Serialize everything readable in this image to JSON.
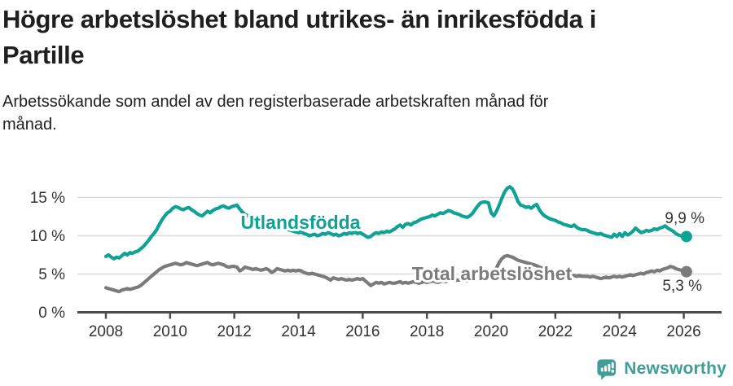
{
  "header": {
    "title_lines": [
      "Högre arbetslöshet bland utrikes- än inrikesfödda i",
      "Partille"
    ],
    "subtitle_lines": [
      "Arbetssökande som andel av den registerbaserade arbetskraften månad för",
      "månad."
    ]
  },
  "footer": {
    "brand": "Newsworthy",
    "brand_color": "#3f9e97",
    "logo_icon": "bar-chart-speech-bubble"
  },
  "chart_data": {
    "type": "line",
    "title": "",
    "xlabel": "",
    "ylabel": "",
    "x_start": "2008-01",
    "x_end": "2026-02",
    "x_step": "1 month",
    "grid": true,
    "ylim": [
      0,
      17
    ],
    "y_ticks": [
      {
        "label": "15 %",
        "value": 15
      },
      {
        "label": "10 %",
        "value": 10
      },
      {
        "label": "5 %",
        "value": 5
      },
      {
        "label": "0 %",
        "value": 0
      }
    ],
    "x_ticks": [
      {
        "label": "2008",
        "value": 2008
      },
      {
        "label": "2010",
        "value": 2010
      },
      {
        "label": "2012",
        "value": 2012
      },
      {
        "label": "2014",
        "value": 2014
      },
      {
        "label": "2016",
        "value": 2016
      },
      {
        "label": "2018",
        "value": 2018
      },
      {
        "label": "2020",
        "value": 2020
      },
      {
        "label": "2022",
        "value": 2022
      },
      {
        "label": "2024",
        "value": 2024
      },
      {
        "label": "2026",
        "value": 2026
      }
    ],
    "legend": "inline-labels",
    "colors": {
      "grid": "#dbdbdb",
      "axis": "#4d4d4d",
      "tick_text": "#333333",
      "end_label_text": "#333333"
    },
    "series": [
      {
        "name": "Utlandsfödda",
        "color": "#0fa295",
        "end_label": "9,9 %",
        "end_value": 9.9,
        "values": [
          7.3,
          7.5,
          7.2,
          7.0,
          7.2,
          7.1,
          7.4,
          7.7,
          7.5,
          7.8,
          7.7,
          7.9,
          8.0,
          8.3,
          8.6,
          9.0,
          9.4,
          9.9,
          10.3,
          10.8,
          11.5,
          12.1,
          12.6,
          13.0,
          13.2,
          13.6,
          13.8,
          13.7,
          13.5,
          13.4,
          13.6,
          13.7,
          13.4,
          13.2,
          12.9,
          12.7,
          12.6,
          12.9,
          13.2,
          13.0,
          13.3,
          13.5,
          13.6,
          13.8,
          13.9,
          13.7,
          13.6,
          13.8,
          13.9,
          14.0,
          13.5,
          13.1,
          12.8,
          12.6,
          12.7,
          12.5,
          12.4,
          12.3,
          12.2,
          12.1,
          11.9,
          11.7,
          11.5,
          11.3,
          11.2,
          11.0,
          11.1,
          10.9,
          10.8,
          10.7,
          10.6,
          10.5,
          10.4,
          10.5,
          10.3,
          10.2,
          10.0,
          10.1,
          10.2,
          10.0,
          10.1,
          10.3,
          10.2,
          10.4,
          10.3,
          10.1,
          10.2,
          10.0,
          10.1,
          10.3,
          10.2,
          10.4,
          10.3,
          10.5,
          10.3,
          10.4,
          10.2,
          10.0,
          9.8,
          9.9,
          10.2,
          10.4,
          10.3,
          10.5,
          10.4,
          10.6,
          10.5,
          10.7,
          10.9,
          11.2,
          11.4,
          11.1,
          11.5,
          11.6,
          11.4,
          11.7,
          11.8,
          12.0,
          12.2,
          12.3,
          12.4,
          12.5,
          12.7,
          12.6,
          12.8,
          13.0,
          12.9,
          13.1,
          13.3,
          13.2,
          13.0,
          12.9,
          12.8,
          12.6,
          12.5,
          12.4,
          12.6,
          12.9,
          13.4,
          13.9,
          14.3,
          14.4,
          14.4,
          14.3,
          13.0,
          12.6,
          13.2,
          14.0,
          14.9,
          15.7,
          16.2,
          16.4,
          16.1,
          15.4,
          14.5,
          14.0,
          13.9,
          13.7,
          13.8,
          13.6,
          13.9,
          14.1,
          13.4,
          12.9,
          12.6,
          12.4,
          12.2,
          12.1,
          12.0,
          11.8,
          11.7,
          11.5,
          11.4,
          11.3,
          11.2,
          11.4,
          11.1,
          10.9,
          10.8,
          10.8,
          10.7,
          10.5,
          10.4,
          10.3,
          10.2,
          10.3,
          10.1,
          10.0,
          9.9,
          9.8,
          10.2,
          9.9,
          10.3,
          9.9,
          10.4,
          10.1,
          10.3,
          10.6,
          11.0,
          10.7,
          10.4,
          10.5,
          10.7,
          10.6,
          10.7,
          10.9,
          10.8,
          11.0,
          11.1,
          11.3,
          11.0,
          10.8,
          10.6,
          10.3,
          10.1,
          10.0,
          9.9,
          9.9
        ]
      },
      {
        "name": "Total arbetslöshet",
        "color": "#7b7b7b",
        "end_label": "5,3 %",
        "end_value": 5.3,
        "values": [
          3.2,
          3.1,
          3.0,
          2.9,
          2.8,
          2.7,
          2.9,
          3.0,
          3.1,
          3.0,
          3.1,
          3.2,
          3.3,
          3.5,
          3.8,
          4.1,
          4.4,
          4.7,
          5.0,
          5.3,
          5.6,
          5.8,
          6.0,
          6.1,
          6.2,
          6.3,
          6.4,
          6.3,
          6.2,
          6.3,
          6.5,
          6.4,
          6.3,
          6.2,
          6.1,
          6.2,
          6.3,
          6.4,
          6.5,
          6.3,
          6.2,
          6.3,
          6.4,
          6.3,
          6.2,
          6.0,
          5.9,
          6.0,
          6.0,
          5.9,
          5.4,
          5.6,
          5.9,
          5.8,
          5.7,
          5.6,
          5.7,
          5.6,
          5.5,
          5.6,
          5.7,
          5.5,
          5.2,
          5.4,
          5.7,
          5.6,
          5.5,
          5.4,
          5.5,
          5.4,
          5.5,
          5.4,
          5.5,
          5.4,
          5.2,
          5.1,
          5.0,
          5.1,
          5.0,
          4.9,
          4.8,
          4.7,
          4.6,
          4.4,
          4.2,
          4.5,
          4.4,
          4.3,
          4.4,
          4.3,
          4.2,
          4.3,
          4.2,
          4.3,
          4.4,
          4.3,
          4.4,
          4.1,
          3.8,
          3.5,
          3.7,
          3.9,
          3.8,
          3.9,
          3.7,
          3.8,
          3.9,
          3.8,
          3.8,
          3.9,
          4.0,
          3.8,
          3.9,
          3.8,
          3.9,
          4.0,
          3.9,
          3.8,
          3.9,
          4.0,
          3.9,
          4.0,
          4.1,
          4.0,
          3.9,
          4.0,
          4.1,
          4.0,
          4.1,
          4.2,
          4.1,
          4.2,
          4.2,
          4.3,
          4.2,
          4.1,
          4.2,
          4.3,
          4.2,
          4.3,
          4.4,
          4.4,
          4.5,
          4.6,
          4.8,
          5.2,
          5.8,
          6.5,
          7.0,
          7.3,
          7.4,
          7.3,
          7.2,
          7.0,
          6.8,
          6.7,
          6.6,
          6.5,
          6.4,
          6.3,
          6.2,
          6.1,
          5.9,
          5.8,
          5.6,
          5.5,
          5.4,
          5.3,
          5.3,
          5.2,
          5.1,
          5.0,
          4.9,
          4.9,
          4.8,
          4.8,
          4.7,
          4.8,
          4.7,
          4.7,
          4.7,
          4.6,
          4.7,
          4.6,
          4.5,
          4.4,
          4.5,
          4.6,
          4.5,
          4.6,
          4.7,
          4.6,
          4.7,
          4.6,
          4.7,
          4.8,
          4.9,
          4.8,
          4.9,
          5.0,
          5.1,
          5.0,
          5.2,
          5.3,
          5.4,
          5.3,
          5.5,
          5.4,
          5.6,
          5.7,
          5.8,
          6.0,
          5.9,
          5.7,
          5.6,
          5.5,
          5.4,
          5.3
        ]
      }
    ]
  }
}
